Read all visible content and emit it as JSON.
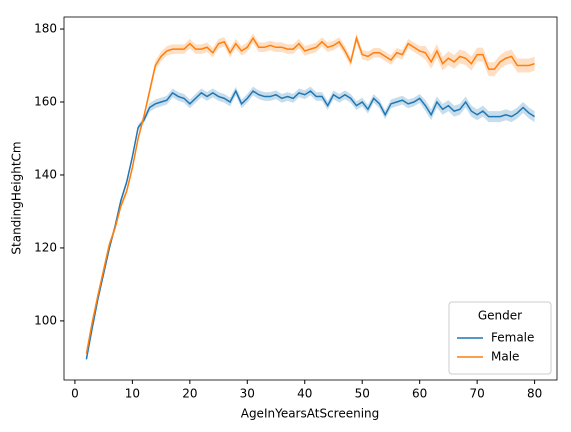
{
  "chart_data": {
    "type": "line",
    "xlabel": "AgeInYearsAtScreening",
    "ylabel": "StandingHeightCm",
    "x": [
      2,
      3,
      4,
      5,
      6,
      7,
      8,
      9,
      10,
      11,
      12,
      13,
      14,
      15,
      16,
      17,
      18,
      19,
      20,
      21,
      22,
      23,
      24,
      25,
      26,
      27,
      28,
      29,
      30,
      31,
      32,
      33,
      34,
      35,
      36,
      37,
      38,
      39,
      40,
      41,
      42,
      43,
      44,
      45,
      46,
      47,
      48,
      49,
      50,
      51,
      52,
      53,
      54,
      55,
      56,
      57,
      58,
      59,
      60,
      61,
      62,
      63,
      64,
      65,
      66,
      67,
      68,
      69,
      70,
      71,
      72,
      73,
      74,
      75,
      76,
      77,
      78,
      79,
      80
    ],
    "series": [
      {
        "name": "Female",
        "color": "#1f77b4",
        "values": [
          89.5,
          98,
          106,
          113,
          120,
          126,
          133,
          138,
          145,
          153,
          155,
          158.5,
          159.5,
          160,
          160.5,
          162.5,
          161.5,
          161,
          159.5,
          161,
          162.5,
          161.5,
          162.5,
          161.5,
          161,
          160,
          163,
          159.5,
          161,
          163,
          162,
          161.5,
          161.5,
          162,
          161,
          161.5,
          161,
          162.5,
          162,
          163,
          161.5,
          161.5,
          159,
          162,
          161,
          162,
          161,
          159,
          160,
          158,
          161,
          159.5,
          156.5,
          159.5,
          160,
          160.5,
          159.5,
          160,
          161,
          159,
          156.5,
          160,
          158,
          159,
          157.5,
          158,
          160,
          157.5,
          156.5,
          157.5,
          156,
          156,
          156,
          156.5,
          156,
          157,
          158.5,
          157,
          156
        ],
        "ci": [
          0.8,
          0.8,
          0.8,
          0.8,
          0.8,
          0.8,
          0.8,
          0.8,
          0.8,
          0.8,
          0.8,
          1.2,
          1.2,
          1.2,
          1.2,
          1.2,
          1.2,
          1.2,
          1.2,
          1.2,
          1.2,
          1.2,
          1.2,
          1.2,
          1.2,
          1.2,
          1.2,
          1.2,
          1.2,
          1.2,
          1.2,
          1.2,
          1.2,
          1.2,
          1.2,
          1.2,
          1.2,
          1.2,
          1.2,
          1.2,
          1.2,
          1.2,
          1.2,
          1.2,
          1.2,
          1.2,
          1.2,
          1.2,
          1.2,
          1.2,
          1.2,
          1.2,
          1.2,
          1.2,
          1.2,
          1.2,
          1.2,
          1.2,
          1.2,
          1.5,
          1.5,
          1.5,
          1.5,
          1.5,
          1.5,
          1.5,
          1.5,
          1.5,
          1.5,
          1.5,
          1.5,
          1.5,
          1.5,
          1.5,
          1.5,
          1.5,
          1.5,
          1.5,
          1.5
        ]
      },
      {
        "name": "Male",
        "color": "#ff7f0e",
        "values": [
          91,
          99.5,
          107,
          114,
          121,
          125.5,
          131.5,
          135.5,
          142,
          150,
          156,
          163,
          170,
          172.5,
          174,
          174.5,
          174.5,
          174.5,
          176,
          174.5,
          174.5,
          175,
          173.5,
          176,
          176.5,
          173.5,
          176,
          174,
          175,
          177.5,
          175,
          175,
          175.5,
          175,
          175,
          174.5,
          174.5,
          176,
          174,
          174.5,
          175,
          176.5,
          175,
          175.5,
          176.5,
          174,
          171,
          177.5,
          173,
          172.5,
          173.5,
          173.5,
          172.5,
          171.5,
          173.5,
          173,
          176,
          175,
          174,
          173.5,
          171,
          174,
          170.5,
          172,
          171,
          172.5,
          172,
          170.5,
          173,
          173,
          169,
          169,
          171,
          172,
          172.5,
          170,
          170,
          170,
          170.5
        ],
        "ci": [
          0.9,
          0.9,
          0.9,
          0.9,
          0.9,
          0.9,
          0.9,
          0.9,
          0.9,
          0.9,
          0.9,
          1.3,
          1.3,
          1.3,
          1.3,
          1.3,
          1.3,
          1.3,
          1.3,
          1.3,
          1.3,
          1.3,
          1.3,
          1.3,
          1.3,
          1.3,
          1.3,
          1.3,
          1.3,
          1.3,
          1.3,
          1.3,
          1.3,
          1.3,
          1.3,
          1.3,
          1.3,
          1.3,
          1.3,
          1.3,
          1.3,
          1.3,
          1.3,
          1.3,
          1.3,
          1.3,
          1.3,
          1.3,
          1.3,
          1.3,
          1.3,
          1.3,
          1.3,
          1.3,
          1.3,
          1.3,
          1.3,
          1.3,
          1.3,
          1.9,
          1.9,
          1.9,
          1.9,
          1.9,
          1.9,
          1.9,
          1.9,
          1.9,
          1.9,
          1.9,
          1.9,
          1.9,
          1.9,
          1.9,
          1.9,
          1.9,
          1.9,
          1.9,
          1.9
        ]
      }
    ],
    "legend_title": "Gender",
    "legend": "lower right",
    "xlim": [
      -1.9,
      83.9
    ],
    "ylim": [
      83.8,
      183.3
    ],
    "xticks": [
      0,
      10,
      20,
      30,
      40,
      50,
      60,
      70,
      80
    ],
    "yticks": [
      100,
      120,
      140,
      160,
      180
    ]
  }
}
